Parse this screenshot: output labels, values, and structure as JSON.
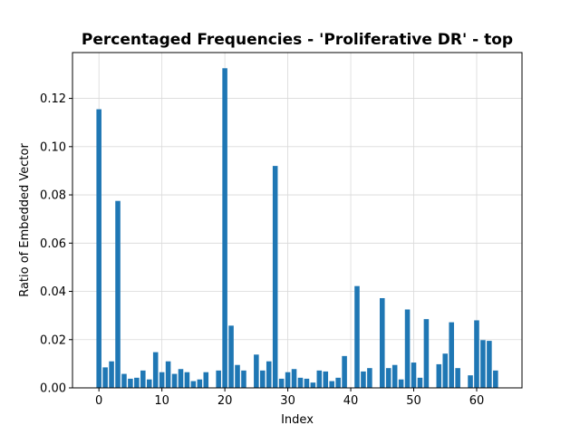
{
  "chart_data": {
    "type": "bar",
    "title": "Percentaged Frequencies - 'Proliferative DR' - top",
    "xlabel": "Index",
    "ylabel": "Ratio of Embedded Vector",
    "xlim": [
      -4.2,
      67.2
    ],
    "ylim": [
      0,
      0.139
    ],
    "xticks": [
      0,
      10,
      20,
      30,
      40,
      50,
      60
    ],
    "xtick_labels": [
      "0",
      "10",
      "20",
      "30",
      "40",
      "50",
      "60"
    ],
    "yticks": [
      0.0,
      0.02,
      0.04,
      0.06,
      0.08,
      0.1,
      0.12
    ],
    "ytick_labels": [
      "0.00",
      "0.02",
      "0.04",
      "0.06",
      "0.08",
      "0.10",
      "0.12"
    ],
    "grid": true,
    "bar_color": "#1f77b4",
    "x": [
      0,
      1,
      2,
      3,
      4,
      5,
      6,
      7,
      8,
      9,
      10,
      11,
      12,
      13,
      14,
      15,
      16,
      17,
      18,
      19,
      20,
      21,
      22,
      23,
      24,
      25,
      26,
      27,
      28,
      29,
      30,
      31,
      32,
      33,
      34,
      35,
      36,
      37,
      38,
      39,
      40,
      41,
      42,
      43,
      44,
      45,
      46,
      47,
      48,
      49,
      50,
      51,
      52,
      53,
      54,
      55,
      56,
      57,
      58,
      59,
      60,
      61,
      62,
      63
    ],
    "values": [
      0.1155,
      0.0085,
      0.011,
      0.0775,
      0.0058,
      0.0038,
      0.0042,
      0.0072,
      0.0035,
      0.0148,
      0.0065,
      0.011,
      0.0058,
      0.0078,
      0.0065,
      0.0028,
      0.0035,
      0.0065,
      0.0,
      0.0072,
      0.1325,
      0.0258,
      0.0095,
      0.0072,
      0.0,
      0.0138,
      0.0072,
      0.011,
      0.092,
      0.0038,
      0.0065,
      0.0078,
      0.0042,
      0.0038,
      0.0022,
      0.0072,
      0.0068,
      0.0028,
      0.0042,
      0.0132,
      0.0,
      0.0422,
      0.0068,
      0.0082,
      0.0,
      0.0372,
      0.0082,
      0.0095,
      0.0035,
      0.0325,
      0.0105,
      0.0042,
      0.0285,
      0.0,
      0.0098,
      0.0142,
      0.0272,
      0.0082,
      0.0,
      0.0052,
      0.028,
      0.0198,
      0.0195,
      0.0072
    ]
  }
}
